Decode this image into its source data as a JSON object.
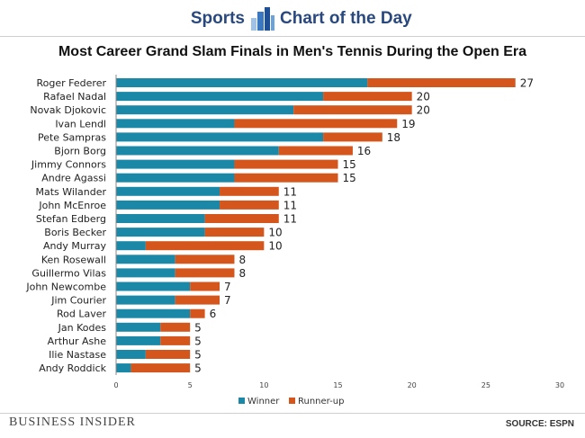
{
  "header": {
    "left_label": "Sports",
    "right_label": "Chart of the Day",
    "icon": "bar-chart-icon"
  },
  "footer": {
    "brand": "BUSINESS INSIDER",
    "source": "SOURCE: ESPN"
  },
  "colors": {
    "winner": "#1c88a8",
    "runner_up": "#d4561c",
    "header": "#29487d"
  },
  "chart_data": {
    "type": "bar",
    "orientation": "horizontal",
    "stacked": true,
    "title": "Most Career Grand Slam Finals in Men's Tennis During the Open Era",
    "categories": [
      "Roger Federer",
      "Rafael Nadal",
      "Novak Djokovic",
      "Ivan Lendl",
      "Pete Sampras",
      "Bjorn Borg",
      "Jimmy Connors",
      "Andre Agassi",
      "Mats Wilander",
      "John McEnroe",
      "Stefan Edberg",
      "Boris Becker",
      "Andy Murray",
      "Ken Rosewall",
      "Guillermo Vilas",
      "John Newcombe",
      "Jim Courier",
      "Rod Laver",
      "Jan Kodes",
      "Arthur Ashe",
      "Ilie Nastase",
      "Andy Roddick"
    ],
    "series": [
      {
        "name": "Winner",
        "values": [
          17,
          14,
          12,
          8,
          14,
          11,
          8,
          8,
          7,
          7,
          6,
          6,
          2,
          4,
          4,
          5,
          4,
          5,
          3,
          3,
          2,
          1
        ]
      },
      {
        "name": "Runner-up",
        "values": [
          10,
          6,
          8,
          11,
          4,
          5,
          7,
          7,
          4,
          4,
          5,
          4,
          8,
          4,
          4,
          2,
          3,
          1,
          2,
          2,
          3,
          4
        ]
      }
    ],
    "totals": [
      27,
      20,
      20,
      19,
      18,
      16,
      15,
      15,
      11,
      11,
      11,
      10,
      10,
      8,
      8,
      7,
      7,
      6,
      5,
      5,
      5,
      5
    ],
    "xlim": [
      0,
      30
    ],
    "xticks": [
      0,
      5,
      10,
      15,
      20,
      25,
      30
    ],
    "legend_position": "bottom",
    "grid": false
  }
}
